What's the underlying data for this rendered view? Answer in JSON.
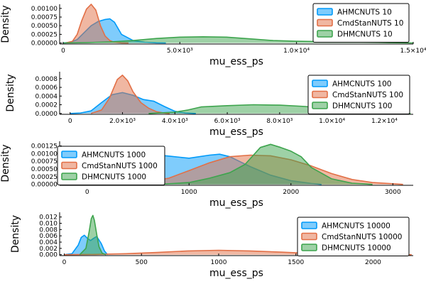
{
  "colors": {
    "series": [
      "#009AF9",
      "#E26F46",
      "#3DA44D"
    ],
    "axis": "#000000",
    "background": "#FFFFFF"
  },
  "chart_data": [
    {
      "type": "area",
      "xlabel": "mu_ess_ps",
      "ylabel": "Density",
      "xlim": [
        -150,
        15000
      ],
      "ylim": [
        -3e-05,
        0.00112
      ],
      "grid": false,
      "legend": "top-right",
      "xticks": [
        0,
        5000,
        10000,
        15000
      ],
      "xtick_labels": [
        "0",
        "5.0×10³",
        "1.0×10⁴",
        "1.5×10⁴"
      ],
      "yticks": [
        0.0,
        0.00025,
        0.0005,
        0.00075,
        0.001
      ],
      "ytick_labels": [
        "0.00000",
        "0.00025",
        "0.00050",
        "0.00075",
        "0.00100"
      ],
      "series": [
        {
          "name": "AHMCNUTS 10",
          "x": [
            0,
            300,
            600,
            900,
            1200,
            1500,
            1800,
            2000,
            2200,
            2500,
            3000,
            3500,
            4000,
            4400
          ],
          "y": [
            0,
            2e-05,
            0.0001,
            0.0003,
            0.0005,
            0.00062,
            0.00068,
            0.0007,
            0.0006,
            0.00025,
            7e-05,
            2e-05,
            5e-06,
            0
          ]
        },
        {
          "name": "CmdStanNUTS 10",
          "x": [
            100,
            400,
            600,
            800,
            1000,
            1200,
            1400,
            1600,
            1800,
            2000,
            2200,
            2500,
            2800
          ],
          "y": [
            0,
            5e-05,
            0.00025,
            0.00065,
            0.00098,
            0.00112,
            0.00095,
            0.0005,
            0.0002,
            7e-05,
            2e-05,
            5e-06,
            0
          ]
        },
        {
          "name": "DHMCNUTS 10",
          "x": [
            0,
            1000,
            2000,
            3000,
            4000,
            5000,
            6000,
            7000,
            8000,
            9000,
            10000,
            11000,
            12000,
            13000,
            14000,
            15000
          ],
          "y": [
            0,
            1e-05,
            3e-05,
            7e-05,
            0.00013,
            0.00017,
            0.00018,
            0.00017,
            0.00012,
            7e-05,
            5e-05,
            4e-05,
            3.5e-05,
            2.5e-05,
            1e-05,
            0
          ]
        }
      ]
    },
    {
      "type": "area",
      "xlabel": "mu_ess_ps",
      "ylabel": "Density",
      "xlim": [
        -400,
        13100
      ],
      "ylim": [
        -2e-05,
        0.00096
      ],
      "grid": false,
      "legend": "top-right",
      "xticks": [
        0,
        2000,
        4000,
        6000,
        8000,
        10000,
        12000
      ],
      "xtick_labels": [
        "0",
        "2.0×10³",
        "4.0×10³",
        "6.0×10³",
        "8.0×10³",
        "1.0×10⁴",
        "1.2×10⁴"
      ],
      "yticks": [
        0.0,
        0.0002,
        0.0004,
        0.0006,
        0.0008
      ],
      "ytick_labels": [
        "0.0000",
        "0.0002",
        "0.0004",
        "0.0006",
        "0.0008"
      ],
      "series": [
        {
          "name": "AHMCNUTS 100",
          "x": [
            0,
            400,
            800,
            1200,
            1600,
            2000,
            2400,
            2800,
            3200,
            3600,
            4000,
            4400,
            4800
          ],
          "y": [
            0,
            1e-05,
            6e-05,
            0.00025,
            0.00043,
            0.00048,
            0.00042,
            0.00032,
            0.00028,
            0.00016,
            5e-05,
            1e-05,
            0
          ]
        },
        {
          "name": "CmdStanNUTS 100",
          "x": [
            800,
            1200,
            1500,
            1800,
            2000,
            2200,
            2400,
            2700,
            3000,
            3300,
            3600,
            3800
          ],
          "y": [
            0,
            8e-05,
            0.00035,
            0.00078,
            0.00088,
            0.00075,
            0.0005,
            0.00025,
            0.00012,
            4e-05,
            1e-05,
            0
          ]
        },
        {
          "name": "DHMCNUTS 100",
          "x": [
            3000,
            4000,
            4500,
            5000,
            6000,
            7000,
            8000,
            9000,
            10000,
            11000,
            12000,
            13000
          ],
          "y": [
            0,
            3e-05,
            8e-05,
            0.00015,
            0.00018,
            0.0002,
            0.00019,
            0.00016,
            9e-05,
            5e-05,
            2e-05,
            0
          ]
        }
      ]
    },
    {
      "type": "area",
      "xlabel": "mu_ess_ps",
      "ylabel": "Density",
      "xlim": [
        -270,
        3200
      ],
      "ylim": [
        -3e-05,
        0.0014
      ],
      "grid": false,
      "legend": "top-left",
      "xticks": [
        0,
        1000,
        2000,
        3000
      ],
      "xtick_labels": [
        "0",
        "1000",
        "2000",
        "3000"
      ],
      "yticks": [
        0.0,
        0.00025,
        0.0005,
        0.00075,
        0.001,
        0.00125
      ],
      "ytick_labels": [
        "0.00000",
        "0.00025",
        "0.00050",
        "0.00075",
        "0.00100",
        "0.00125"
      ],
      "series": [
        {
          "name": "AHMCNUTS 1000",
          "x": [
            -200,
            0,
            200,
            400,
            600,
            800,
            1000,
            1200,
            1300,
            1400,
            1600,
            1800,
            2000,
            2200,
            2300
          ],
          "y": [
            0,
            0.0001,
            0.0004,
            0.0008,
            0.00098,
            0.00092,
            0.00085,
            0.00095,
            0.00098,
            0.0009,
            0.00058,
            0.0003,
            0.00012,
            3e-05,
            0
          ]
        },
        {
          "name": "CmdStanNUTS 1000",
          "x": [
            200,
            500,
            800,
            1000,
            1200,
            1400,
            1600,
            1800,
            2000,
            2200,
            2400,
            2600,
            2800,
            3000,
            3100
          ],
          "y": [
            0,
            5e-05,
            0.0002,
            0.00045,
            0.0007,
            0.0009,
            0.00095,
            0.00093,
            0.0008,
            0.0006,
            0.00035,
            0.00016,
            6e-05,
            2e-05,
            0
          ]
        },
        {
          "name": "DHMCNUTS 1000",
          "x": [
            700,
            1000,
            1200,
            1400,
            1550,
            1700,
            1800,
            1900,
            2000,
            2100,
            2200,
            2400,
            2600,
            2800
          ],
          "y": [
            0,
            6e-05,
            0.0002,
            0.00038,
            0.00065,
            0.0012,
            0.0013,
            0.0012,
            0.00108,
            0.0009,
            0.00055,
            0.00018,
            4e-05,
            0
          ]
        }
      ]
    },
    {
      "type": "area",
      "xlabel": "mu_ess_ps",
      "ylabel": "Density",
      "xlim": [
        -30,
        2260
      ],
      "ylim": [
        -0.0003,
        0.0135
      ],
      "grid": false,
      "legend": "top-right",
      "xticks": [
        0,
        500,
        1000,
        1500,
        2000
      ],
      "xtick_labels": [
        "0",
        "500",
        "1000",
        "1500",
        "2000"
      ],
      "yticks": [
        0.0,
        0.002,
        0.004,
        0.006,
        0.008,
        0.01,
        0.012
      ],
      "ytick_labels": [
        "0.000",
        "0.002",
        "0.004",
        "0.006",
        "0.008",
        "0.010",
        "0.012"
      ],
      "series": [
        {
          "name": "AHMCNUTS 10000",
          "x": [
            0,
            50,
            90,
            110,
            130,
            150,
            170,
            190,
            210,
            240,
            260,
            280
          ],
          "y": [
            0,
            0.0003,
            0.003,
            0.0055,
            0.0062,
            0.0052,
            0.0045,
            0.0052,
            0.0058,
            0.0035,
            0.0012,
            0
          ]
        },
        {
          "name": "CmdStanNUTS 10000",
          "x": [
            0,
            200,
            400,
            600,
            800,
            1000,
            1200,
            1400,
            1600,
            1800,
            2000,
            2250
          ],
          "y": [
            0,
            8e-05,
            0.0003,
            0.0007,
            0.0012,
            0.0014,
            0.0012,
            0.0008,
            0.0004,
            0.0002,
            7e-05,
            0
          ]
        },
        {
          "name": "DHMCNUTS 10000",
          "x": [
            100,
            140,
            160,
            175,
            185,
            195,
            210,
            225,
            245,
            270
          ],
          "y": [
            0,
            0.002,
            0.007,
            0.0115,
            0.0125,
            0.011,
            0.0065,
            0.0025,
            0.0005,
            0
          ]
        }
      ]
    }
  ]
}
